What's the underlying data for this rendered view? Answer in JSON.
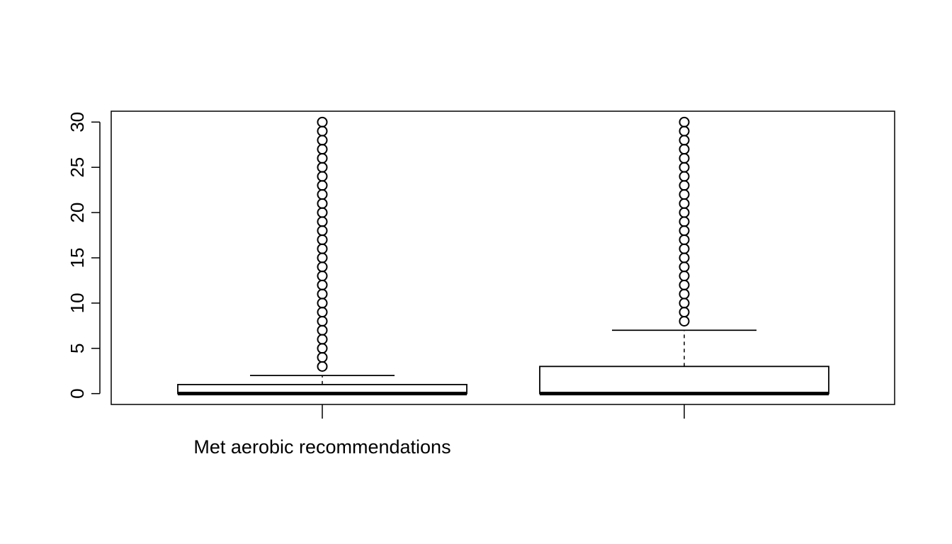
{
  "chart_data": {
    "type": "boxplot",
    "title": "",
    "xlabel": "",
    "ylabel": "",
    "ylim": [
      -1.2,
      31.2
    ],
    "yticks": [
      0,
      5,
      10,
      15,
      20,
      25,
      30
    ],
    "grid": false,
    "categories": [
      "Met aerobic recommendations",
      ""
    ],
    "boxes": [
      {
        "label": "Met aerobic recommendations",
        "min": 0,
        "q1": 0,
        "median": 0,
        "q3": 1,
        "whisker_high": 2,
        "outliers": [
          3,
          4,
          5,
          6,
          7,
          8,
          9,
          10,
          11,
          12,
          13,
          14,
          15,
          16,
          17,
          18,
          19,
          20,
          21,
          22,
          23,
          24,
          25,
          26,
          27,
          28,
          29,
          30
        ]
      },
      {
        "label": "",
        "min": 0,
        "q1": 0,
        "median": 0,
        "q3": 3,
        "whisker_high": 7,
        "outliers": [
          8,
          9,
          10,
          11,
          12,
          13,
          14,
          15,
          16,
          17,
          18,
          19,
          20,
          21,
          22,
          23,
          24,
          25,
          26,
          27,
          28,
          29,
          30
        ]
      }
    ],
    "colors": {
      "box_fill": "#ffffff",
      "stroke": "#000000"
    }
  }
}
